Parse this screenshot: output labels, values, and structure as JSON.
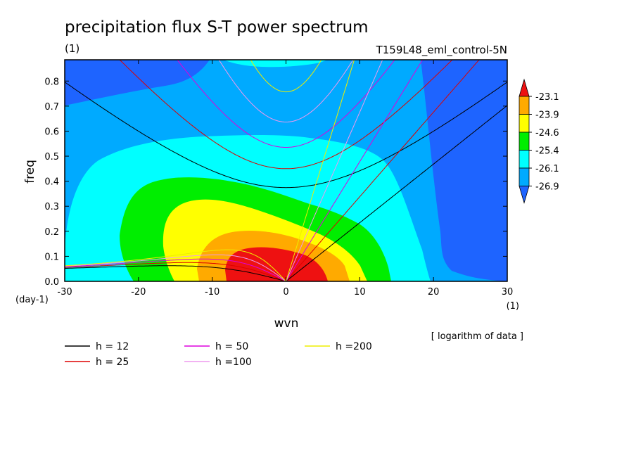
{
  "chart_data": {
    "type": "heatmap",
    "title": "precipitation flux S-T power spectrum",
    "subtitle_left": "(1)",
    "subtitle_right": "T159L48_eml_control-5N",
    "xlabel": "wvn",
    "ylabel": "freq",
    "x_unit": "(1)",
    "y_unit": "(day-1)",
    "xlim": [
      -30,
      30
    ],
    "ylim": [
      0,
      0.885
    ],
    "x_ticks": [
      -30,
      -20,
      -10,
      0,
      10,
      20,
      30
    ],
    "x_tick_labels": [
      "-30",
      "-20",
      "-10",
      "0",
      "10",
      "20",
      "30"
    ],
    "y_ticks": [
      0,
      0.1,
      0.2,
      0.3,
      0.4,
      0.5,
      0.6,
      0.7,
      0.8
    ],
    "y_tick_labels": [
      "0.0",
      "0.1",
      "0.2",
      "0.3",
      "0.4",
      "0.5",
      "0.6",
      "0.7",
      "0.8"
    ],
    "note": "[ logarithm of data ]",
    "colorbar": {
      "levels": [
        "-23.1",
        "-23.9",
        "-24.6",
        "-25.4",
        "-26.1",
        "-26.9"
      ],
      "colors_top_to_bottom": [
        "#ee1111",
        "#ffaa00",
        "#ffff00",
        "#00ee00",
        "#00ffff",
        "#00aaff",
        "#1e64ff"
      ]
    },
    "contour_colors": {
      "c1": "#1e64ff",
      "c2": "#00aaff",
      "c3": "#00ffff",
      "c4": "#00ee00",
      "c5": "#ffff00",
      "c6": "#ffaa00",
      "c7": "#ee1111"
    },
    "dispersion_curves": [
      {
        "label": "h = 12",
        "h": 12,
        "color": "#000000"
      },
      {
        "label": "h = 25",
        "h": 25,
        "color": "#dd0000"
      },
      {
        "label": "h = 50",
        "h": 50,
        "color": "#dd00dd"
      },
      {
        "label": "h =100",
        "h": 100,
        "color": "#ee99ee"
      },
      {
        "label": "h =200",
        "h": 200,
        "color": "#eeee00"
      }
    ]
  }
}
